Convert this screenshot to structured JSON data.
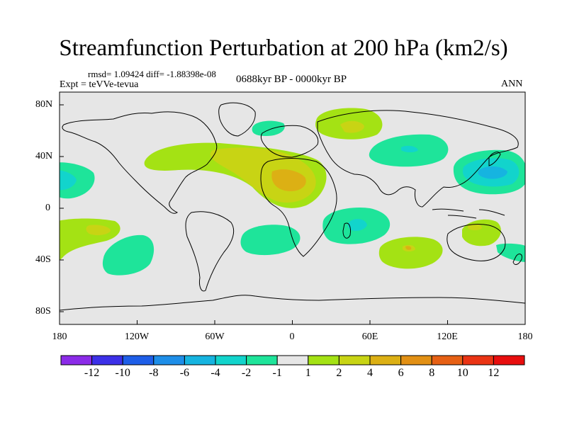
{
  "title": "Streamfunction Perturbation at 200 hPa (km2/s)",
  "stats": "rmsd= 1.09424 diff= -1.88398e-08",
  "expt": "Expt = teVVe-tevua",
  "period": "0688kyr BP - 0000kyr BP",
  "season": "ANN",
  "lat_labels": [
    "80N",
    "40N",
    "0",
    "40S",
    "80S"
  ],
  "lon_labels": [
    "180",
    "120W",
    "60W",
    "0",
    "60E",
    "120E",
    "180"
  ],
  "colorbar": {
    "labels": [
      "-12",
      "-10",
      "-8",
      "-6",
      "-4",
      "-2",
      "-1",
      "1",
      "2",
      "4",
      "6",
      "8",
      "10",
      "12"
    ],
    "colors": [
      "#8b2be8",
      "#3c30e8",
      "#1e5ee8",
      "#1e8ee8",
      "#16b4e0",
      "#12d4cc",
      "#1ee49a",
      "#e6e6e6",
      "#a4e214",
      "#c8d414",
      "#dcb014",
      "#e29014",
      "#e66014",
      "#ea3414",
      "#e80e0e"
    ]
  }
}
